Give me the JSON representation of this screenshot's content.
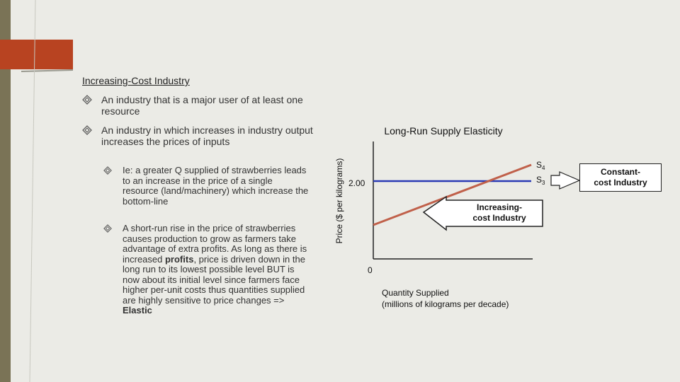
{
  "heading": "Increasing-Cost Industry",
  "bullets": [
    {
      "text": "An industry that is a major user of at least one resource"
    },
    {
      "text": "An industry in which increases in industry output increases the prices of inputs"
    }
  ],
  "sub_bullets": [
    {
      "text": "Ie: a greater Q supplied of strawberries leads to an increase in the price of a single resource (land/machinery) which increase the bottom-line"
    },
    {
      "text_before": "A short-run rise in the price of strawberries causes production to grow as farmers take advantage of extra profits.  As long as there is increased ",
      "bold": "profits",
      "text_after": ", price is driven down in the long run to its lowest possible level  BUT is now about its initial level since farmers face higher per-unit costs thus quantities supplied are highly sensitive to price changes => ",
      "bold_end": "Elastic"
    }
  ],
  "diagram": {
    "title": "Long-Run Supply Elasticity",
    "y_axis_label": "Price ($ per kilograms)",
    "x_axis_label_line1": "Quantity Supplied",
    "x_axis_label_line2": "(millions of kilograms per decade)",
    "origin_label": "0",
    "price_tick_label": "2.00",
    "curves": [
      {
        "label": "S",
        "subscript": "4",
        "color": "#c0604a"
      },
      {
        "label": "S",
        "subscript": "3",
        "color": "#2b3bb5"
      }
    ],
    "arrow_callout": [
      "Increasing-",
      "cost Industry"
    ],
    "constant_callout": [
      "Constant-",
      "cost Industry"
    ]
  },
  "colors": {
    "accent": "#b84321",
    "sidebar": "#7a7356",
    "background": "#ebebe6"
  }
}
